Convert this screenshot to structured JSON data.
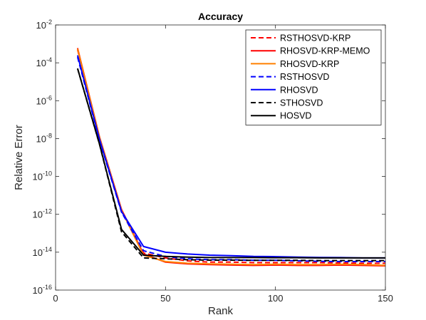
{
  "chart_data": {
    "type": "line",
    "title": "Accuracy",
    "xlabel": "Rank",
    "ylabel": "Relative Error",
    "xlim": [
      0,
      150
    ],
    "ylim_log10": [
      -16,
      -2
    ],
    "y_scale": "log",
    "grid": false,
    "legend_position": "top-right",
    "x_ticks": [
      0,
      50,
      100,
      150
    ],
    "x_tick_labels": [
      "0",
      "50",
      "100",
      "150"
    ],
    "y_tick_exponents": [
      -16,
      -14,
      -12,
      -10,
      -8,
      -6,
      -4,
      -2
    ],
    "y_tick_base": "10",
    "y_tick_sup": [
      "-16",
      "-14",
      "-12",
      "-10",
      "-8",
      "-6",
      "-4",
      "-2"
    ],
    "x": [
      10,
      20,
      30,
      40,
      50,
      60,
      70,
      80,
      90,
      100,
      110,
      120,
      130,
      140,
      150
    ],
    "series": [
      {
        "name": "RSTHOSVD-KRP",
        "color": "#ff0000",
        "dash": "dashed",
        "values": [
          0.0005,
          1e-08,
          1.5e-12,
          9e-15,
          5e-15,
          3.5e-15,
          3e-15,
          3e-15,
          2.8e-15,
          2.8e-15,
          2.8e-15,
          2.8e-15,
          2.7e-15,
          2.6e-15,
          2.6e-15
        ]
      },
      {
        "name": "RHOSVD-KRP-MEMO",
        "color": "#ff0000",
        "dash": "solid",
        "values": [
          0.0006,
          1.2e-08,
          1.8e-12,
          8e-15,
          3e-15,
          2.4e-15,
          2.2e-15,
          2.1e-15,
          2e-15,
          2.1e-15,
          2e-15,
          2e-15,
          2.1e-15,
          2e-15,
          1.9e-15
        ]
      },
      {
        "name": "RHOSVD-KRP",
        "color": "#ff8000",
        "dash": "solid",
        "values": [
          0.00055,
          1.1e-08,
          1.6e-12,
          7e-15,
          3.2e-15,
          2.6e-15,
          2.4e-15,
          2.3e-15,
          2.2e-15,
          2.3e-15,
          2.2e-15,
          2.2e-15,
          2.3e-15,
          2.2e-15,
          2e-15
        ]
      },
      {
        "name": "RSTHOSVD",
        "color": "#0000ff",
        "dash": "dashed",
        "values": [
          0.0002,
          8e-09,
          1.3e-12,
          1.2e-14,
          6e-15,
          4.5e-15,
          4e-15,
          4e-15,
          3.7e-15,
          3.7e-15,
          3.5e-15,
          3.3e-15,
          3.2e-15,
          3.2e-15,
          3.2e-15
        ]
      },
      {
        "name": "RHOSVD",
        "color": "#0000ff",
        "dash": "solid",
        "values": [
          0.00025,
          9e-09,
          1.4e-12,
          2e-14,
          1e-14,
          8e-15,
          7e-15,
          6.5e-15,
          6e-15,
          5.8e-15,
          5.5e-15,
          5.3e-15,
          5.2e-15,
          5e-15,
          5e-15
        ]
      },
      {
        "name": "STHOSVD",
        "color": "#000000",
        "dash": "dashed",
        "values": [
          5e-05,
          5e-09,
          1.2e-13,
          5e-15,
          4.5e-15,
          4e-15,
          3.8e-15,
          3.8e-15,
          3.7e-15,
          3.7e-15,
          3.7e-15,
          3.6e-15,
          3.6e-15,
          3.6e-15,
          3.6e-15
        ]
      },
      {
        "name": "HOSVD",
        "color": "#000000",
        "dash": "solid",
        "values": [
          5e-05,
          5e-09,
          1.6e-13,
          7e-15,
          6e-15,
          5.5e-15,
          5.2e-15,
          5.2e-15,
          5.2e-15,
          5.1e-15,
          5.1e-15,
          5e-15,
          5e-15,
          5e-15,
          5e-15
        ]
      }
    ]
  }
}
